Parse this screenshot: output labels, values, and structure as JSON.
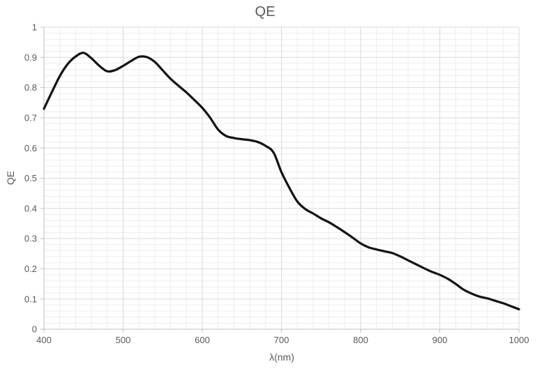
{
  "chart_data": {
    "type": "line",
    "title": "QE",
    "xlabel": "λ(nm)",
    "ylabel": "QE",
    "xlim": [
      400,
      1000
    ],
    "ylim": [
      0,
      1
    ],
    "x_major_step": 100,
    "x_minor_step": 20,
    "y_major_step": 0.1,
    "y_minor_step": 0.02,
    "grid": "major+minor",
    "legend": "none",
    "smooth": true,
    "x_ticks": [
      "400",
      "500",
      "600",
      "700",
      "800",
      "900",
      "1000"
    ],
    "y_ticks": [
      "0",
      "0.1",
      "0.2",
      "0.3",
      "0.4",
      "0.5",
      "0.6",
      "0.7",
      "0.8",
      "0.9",
      "1"
    ],
    "series": [
      {
        "name": "QE",
        "x": [
          400,
          410,
          420,
          430,
          440,
          450,
          460,
          470,
          480,
          490,
          500,
          510,
          520,
          530,
          540,
          550,
          560,
          570,
          580,
          590,
          600,
          610,
          620,
          630,
          640,
          650,
          660,
          670,
          680,
          690,
          700,
          710,
          720,
          730,
          740,
          750,
          760,
          770,
          780,
          790,
          800,
          810,
          820,
          830,
          840,
          850,
          860,
          870,
          880,
          890,
          900,
          910,
          920,
          930,
          940,
          950,
          960,
          970,
          980,
          990,
          1000
        ],
        "y": [
          0.73,
          0.785,
          0.838,
          0.878,
          0.903,
          0.915,
          0.897,
          0.872,
          0.854,
          0.858,
          0.872,
          0.888,
          0.902,
          0.901,
          0.885,
          0.857,
          0.829,
          0.806,
          0.784,
          0.759,
          0.733,
          0.7,
          0.661,
          0.64,
          0.633,
          0.629,
          0.626,
          0.62,
          0.607,
          0.585,
          0.52,
          0.468,
          0.423,
          0.398,
          0.383,
          0.367,
          0.354,
          0.338,
          0.321,
          0.303,
          0.284,
          0.271,
          0.264,
          0.258,
          0.252,
          0.241,
          0.228,
          0.215,
          0.202,
          0.19,
          0.18,
          0.167,
          0.15,
          0.131,
          0.118,
          0.108,
          0.102,
          0.094,
          0.086,
          0.076,
          0.066
        ]
      }
    ]
  },
  "colors": {
    "line": "#141414",
    "grid_major": "#d9d9d9",
    "grid_minor": "#ededed",
    "axis": "#bfbfbf",
    "text": "#595959",
    "background": "#ffffff"
  },
  "style": {
    "line_width": 3.25
  }
}
